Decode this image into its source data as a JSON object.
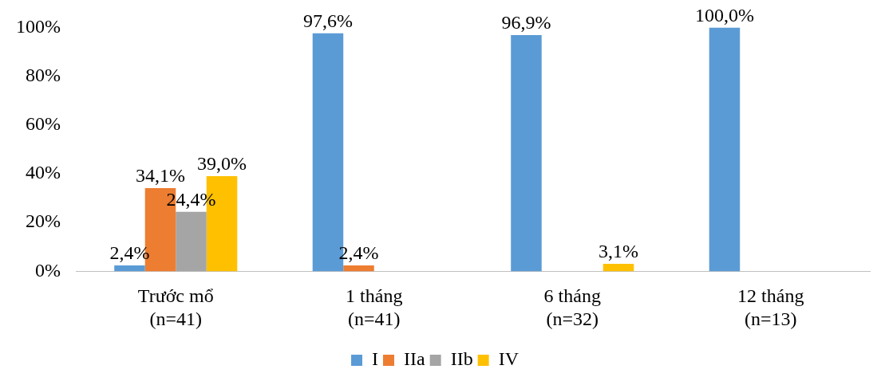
{
  "chart_data": {
    "type": "bar",
    "categories": [
      "Trước mổ\n(n=41)",
      "1 tháng\n(n=41)",
      "6 tháng\n(n=32)",
      "12 tháng\n(n=13)"
    ],
    "series": [
      {
        "name": "I",
        "color": "#5b9bd5",
        "values": [
          2.4,
          97.6,
          96.9,
          100
        ],
        "value_labels": [
          "2,4%",
          "97,6%",
          "96,9%",
          "100,0%"
        ]
      },
      {
        "name": "IIa",
        "color": "#ed7d31",
        "values": [
          34.1,
          2.4,
          0,
          0
        ],
        "value_labels": [
          "34,1%",
          "2,4%",
          null,
          null
        ]
      },
      {
        "name": "IIb",
        "color": "#a5a5a5",
        "values": [
          24.4,
          0,
          0,
          0
        ],
        "value_labels": [
          "24,4%",
          null,
          null,
          null
        ]
      },
      {
        "name": "IV",
        "color": "#ffc000",
        "values": [
          39.0,
          0,
          3.1,
          0
        ],
        "value_labels": [
          "39,0%",
          null,
          "3,1%",
          null
        ]
      }
    ],
    "ylim": [
      0,
      100
    ],
    "yticks": [
      {
        "value": 0,
        "label": "0%"
      },
      {
        "value": 20,
        "label": "20%"
      },
      {
        "value": 40,
        "label": "40%"
      },
      {
        "value": 60,
        "label": "60%"
      },
      {
        "value": 80,
        "label": "80%"
      },
      {
        "value": 100,
        "label": "100%"
      }
    ],
    "grid": false,
    "legend": "bottom"
  }
}
